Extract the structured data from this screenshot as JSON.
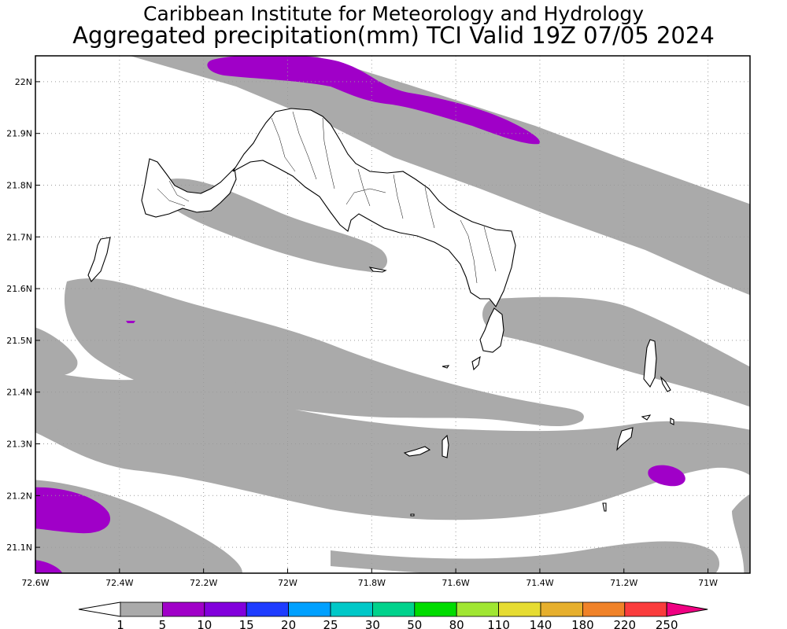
{
  "title": {
    "line1": "Caribbean Institute for Meteorology and Hydrology",
    "line2": "Aggregated precipitation(mm) TCI Valid 19Z 07/05 2024"
  },
  "map": {
    "lon_range": [
      -72.6,
      -70.9
    ],
    "lat_range": [
      21.05,
      22.05
    ],
    "lat_ticks": [
      {
        "value": 22.0,
        "label": "22N"
      },
      {
        "value": 21.9,
        "label": "21.9N"
      },
      {
        "value": 21.8,
        "label": "21.8N"
      },
      {
        "value": 21.7,
        "label": "21.7N"
      },
      {
        "value": 21.6,
        "label": "21.6N"
      },
      {
        "value": 21.5,
        "label": "21.5N"
      },
      {
        "value": 21.4,
        "label": "21.4N"
      },
      {
        "value": 21.3,
        "label": "21.3N"
      },
      {
        "value": 21.2,
        "label": "21.2N"
      },
      {
        "value": 21.1,
        "label": "21.1N"
      }
    ],
    "lon_ticks": [
      {
        "value": -72.6,
        "label": "72.6W"
      },
      {
        "value": -72.4,
        "label": "72.4W"
      },
      {
        "value": -72.2,
        "label": "72.2W"
      },
      {
        "value": -72.0,
        "label": "72W"
      },
      {
        "value": -71.8,
        "label": "71.8W"
      },
      {
        "value": -71.6,
        "label": "71.6W"
      },
      {
        "value": -71.4,
        "label": "71.4W"
      },
      {
        "value": -71.2,
        "label": "71.2W"
      },
      {
        "value": -71.0,
        "label": "71W"
      }
    ],
    "grid": true
  },
  "colorbar": {
    "labels": [
      "1",
      "5",
      "10",
      "15",
      "20",
      "25",
      "30",
      "50",
      "80",
      "110",
      "140",
      "180",
      "220",
      "250"
    ],
    "colors": [
      "#aaaaaa",
      "#a000c8",
      "#8200dc",
      "#1e3cff",
      "#00a0ff",
      "#00c8c8",
      "#00d28c",
      "#00dc00",
      "#a0e632",
      "#e6dc32",
      "#e6af2d",
      "#f08228",
      "#fa3c3c",
      "#f00082"
    ],
    "low_color": "#ffffff"
  },
  "colors": {
    "band_1_5": "#aaaaaa",
    "band_5_10": "#a000c8",
    "coast": "#000000"
  }
}
